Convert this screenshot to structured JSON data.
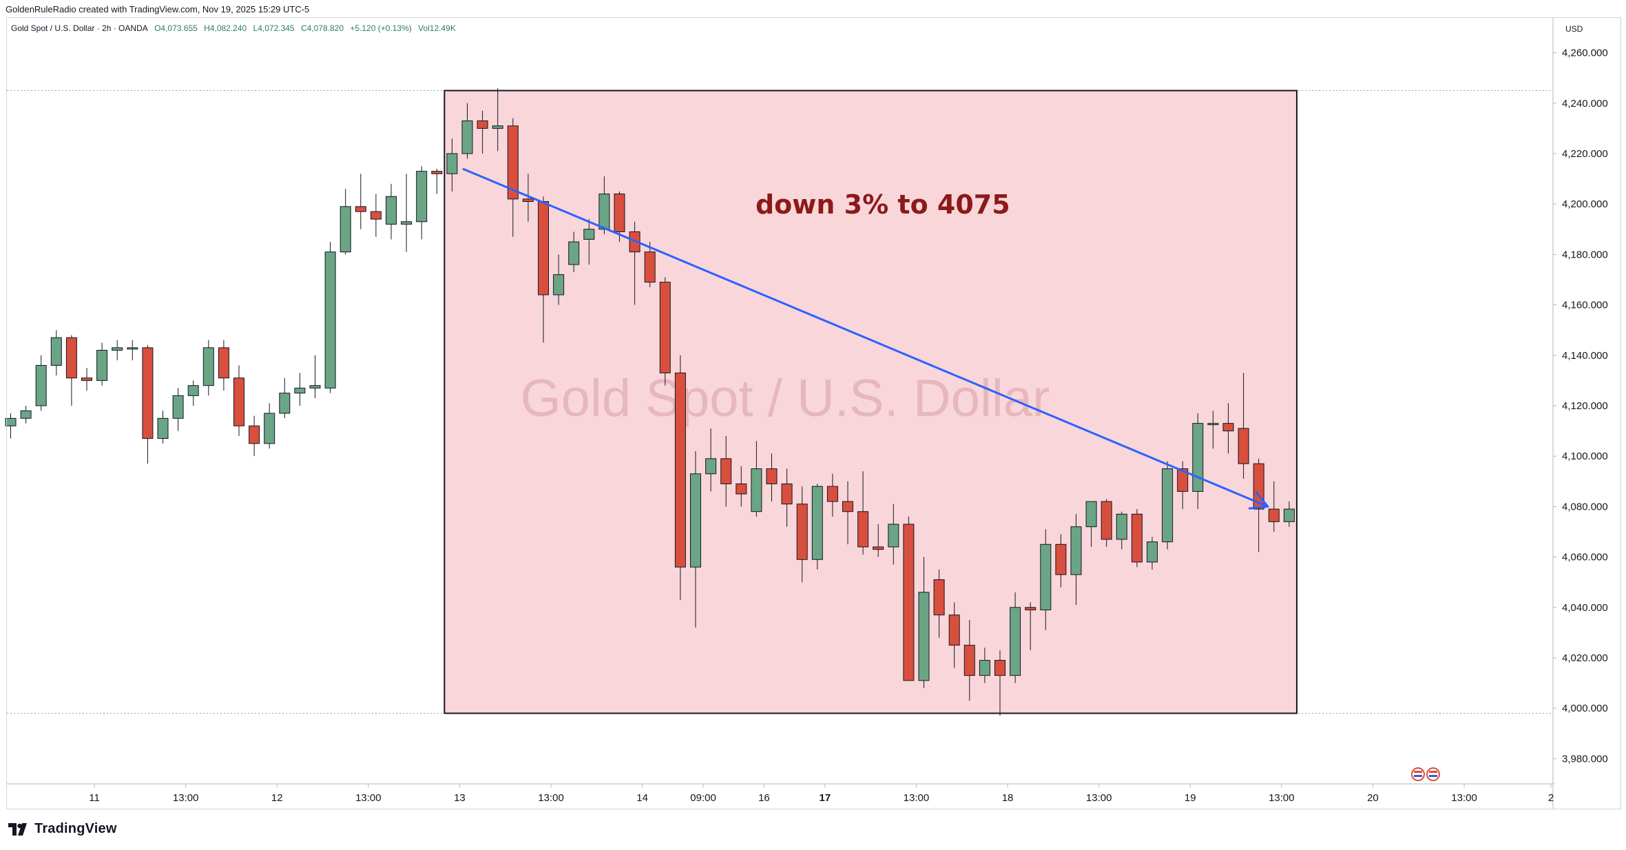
{
  "header": {
    "credit": "GoldenRuleRadio created with TradingView.com, Nov 19, 2025 15:29 UTC-5"
  },
  "symbol_bar": {
    "name": "Gold Spot / U.S. Dollar · 2h · OANDA",
    "open": "O4,073.655",
    "high": "H4,082.240",
    "low": "L4,072.345",
    "close": "C4,078.820",
    "change": "+5.120 (+0.13%)",
    "volume": "Vol12.49K"
  },
  "currency": "USD",
  "watermark": "Gold Spot / U.S. Dollar",
  "brand": "TradingView",
  "colors": {
    "up": "#6aa585",
    "down": "#d94f3d",
    "zone_fill": "#f9d6da",
    "arrow": "#2962ff",
    "annotation": "#8b1a1a"
  },
  "chart_data": {
    "type": "candlestick",
    "ylim": [
      3970,
      4270
    ],
    "y_ticks": [
      "4,260.000",
      "4,240.000",
      "4,220.000",
      "4,200.000",
      "4,180.000",
      "4,160.000",
      "4,140.000",
      "4,120.000",
      "4,100.000",
      "4,080.000",
      "4,060.000",
      "4,040.000",
      "4,020.000",
      "4,000.000",
      "3,980.000"
    ],
    "x_ticks": [
      {
        "label": "11",
        "bar": 5.5,
        "bold": false
      },
      {
        "label": "13:00",
        "bar": 11.5,
        "bold": false
      },
      {
        "label": "12",
        "bar": 17.5,
        "bold": false
      },
      {
        "label": "13:00",
        "bar": 23.5,
        "bold": false
      },
      {
        "label": "13",
        "bar": 29.5,
        "bold": false
      },
      {
        "label": "13:00",
        "bar": 35.5,
        "bold": false
      },
      {
        "label": "14",
        "bar": 41.5,
        "bold": false
      },
      {
        "label": "09:00",
        "bar": 45.5,
        "bold": false
      },
      {
        "label": "16",
        "bar": 49.5,
        "bold": false
      },
      {
        "label": "17",
        "bar": 53.5,
        "bold": true
      },
      {
        "label": "13:00",
        "bar": 59.5,
        "bold": false
      },
      {
        "label": "18",
        "bar": 65.5,
        "bold": false
      },
      {
        "label": "13:00",
        "bar": 71.5,
        "bold": false
      },
      {
        "label": "19",
        "bar": 77.5,
        "bold": false
      },
      {
        "label": "13:00",
        "bar": 83.5,
        "bold": false
      },
      {
        "label": "20",
        "bar": 89.5,
        "bold": false
      },
      {
        "label": "13:00",
        "bar": 95.5,
        "bold": false
      },
      {
        "label": "2",
        "bar": 101.2,
        "bold": false
      }
    ],
    "candles": [
      [
        4112,
        4117,
        4107,
        4115
      ],
      [
        4115,
        4120,
        4113,
        4118
      ],
      [
        4120,
        4140,
        4118,
        4136
      ],
      [
        4136,
        4150,
        4132,
        4147
      ],
      [
        4147,
        4148,
        4120,
        4131
      ],
      [
        4131,
        4135,
        4126,
        4130
      ],
      [
        4130,
        4145,
        4128,
        4142
      ],
      [
        4142,
        4146,
        4138,
        4143
      ],
      [
        4143,
        4146,
        4138,
        4143
      ],
      [
        4143,
        4144,
        4097,
        4107
      ],
      [
        4107,
        4118,
        4105,
        4115
      ],
      [
        4115,
        4127,
        4110,
        4124
      ],
      [
        4124,
        4130,
        4120,
        4128
      ],
      [
        4128,
        4146,
        4124,
        4143
      ],
      [
        4143,
        4146,
        4126,
        4131
      ],
      [
        4131,
        4136,
        4108,
        4112
      ],
      [
        4112,
        4116,
        4100,
        4105
      ],
      [
        4105,
        4121,
        4103,
        4117
      ],
      [
        4117,
        4131,
        4115,
        4125
      ],
      [
        4125,
        4133,
        4120,
        4127
      ],
      [
        4127,
        4140,
        4123,
        4128
      ],
      [
        4127,
        4185,
        4125,
        4181
      ],
      [
        4181,
        4206,
        4180,
        4199
      ],
      [
        4199,
        4212,
        4190,
        4197
      ],
      [
        4197,
        4204,
        4187,
        4194
      ],
      [
        4192,
        4208,
        4186,
        4203
      ],
      [
        4192,
        4212,
        4181,
        4193
      ],
      [
        4193,
        4215,
        4186,
        4213
      ],
      [
        4213,
        4214,
        4204,
        4212
      ],
      [
        4212,
        4226,
        4205,
        4220
      ],
      [
        4220,
        4240,
        4218,
        4233
      ],
      [
        4233,
        4237,
        4220,
        4230
      ],
      [
        4230,
        4246,
        4221,
        4231
      ],
      [
        4231,
        4234,
        4187,
        4202
      ],
      [
        4202,
        4212,
        4193,
        4201
      ],
      [
        4201,
        4203,
        4145,
        4164
      ],
      [
        4164,
        4180,
        4160,
        4172
      ],
      [
        4176,
        4189,
        4173,
        4185
      ],
      [
        4186,
        4194,
        4176,
        4190
      ],
      [
        4190,
        4211,
        4188,
        4204
      ],
      [
        4204,
        4205,
        4185,
        4189
      ],
      [
        4189,
        4193,
        4160,
        4181
      ],
      [
        4181,
        4185,
        4167,
        4169
      ],
      [
        4169,
        4171,
        4128,
        4133
      ],
      [
        4133,
        4140,
        4043,
        4056
      ],
      [
        4056,
        4102,
        4032,
        4093
      ],
      [
        4093,
        4111,
        4086,
        4099
      ],
      [
        4099,
        4108,
        4080,
        4089
      ],
      [
        4089,
        4096,
        4080,
        4085
      ],
      [
        4078,
        4106,
        4076,
        4095
      ],
      [
        4095,
        4101,
        4082,
        4089
      ],
      [
        4089,
        4095,
        4072,
        4081
      ],
      [
        4081,
        4088,
        4050,
        4059
      ],
      [
        4059,
        4089,
        4055,
        4088
      ],
      [
        4088,
        4093,
        4076,
        4082
      ],
      [
        4082,
        4090,
        4065,
        4078
      ],
      [
        4078,
        4094,
        4061,
        4064
      ],
      [
        4064,
        4073,
        4060,
        4063
      ],
      [
        4064,
        4081,
        4057,
        4073
      ],
      [
        4073,
        4076,
        4011,
        4011
      ],
      [
        4011,
        4060,
        4008,
        4046
      ],
      [
        4051,
        4055,
        4028,
        4037
      ],
      [
        4037,
        4042,
        4016,
        4025
      ],
      [
        4025,
        4035,
        4003,
        4013
      ],
      [
        4013,
        4024,
        4010,
        4019
      ],
      [
        4019,
        4023,
        3997,
        4013
      ],
      [
        4013,
        4046,
        4010,
        4040
      ],
      [
        4040,
        4042,
        4023,
        4039
      ],
      [
        4039,
        4071,
        4031,
        4065
      ],
      [
        4065,
        4069,
        4048,
        4053
      ],
      [
        4053,
        4077,
        4041,
        4072
      ],
      [
        4072,
        4082,
        4064,
        4082
      ],
      [
        4082,
        4083,
        4064,
        4067
      ],
      [
        4067,
        4078,
        4063,
        4077
      ],
      [
        4077,
        4079,
        4056,
        4058
      ],
      [
        4058,
        4068,
        4055,
        4066
      ],
      [
        4066,
        4098,
        4063,
        4095
      ],
      [
        4095,
        4098,
        4079,
        4086
      ],
      [
        4086,
        4117,
        4079,
        4113
      ],
      [
        4113,
        4118,
        4103,
        4113
      ],
      [
        4113,
        4121,
        4101,
        4110
      ],
      [
        4111,
        4133,
        4091,
        4097
      ],
      [
        4097,
        4099,
        4062,
        4079
      ],
      [
        4079,
        4090,
        4070,
        4074
      ],
      [
        4074,
        4082,
        4072,
        4079
      ]
    ],
    "annotations": {
      "zone": {
        "from_bar": 28.5,
        "to_bar": 84.5,
        "top": 4245,
        "bottom": 3998
      },
      "arrow": {
        "from_bar": 29.7,
        "from_price": 4214,
        "to_bar": 82.6,
        "to_price": 4080
      },
      "label": {
        "text": "down 3% to 4075",
        "bar": 57.3,
        "price": 4200
      },
      "dashed_levels": [
        4245,
        3998
      ]
    }
  }
}
